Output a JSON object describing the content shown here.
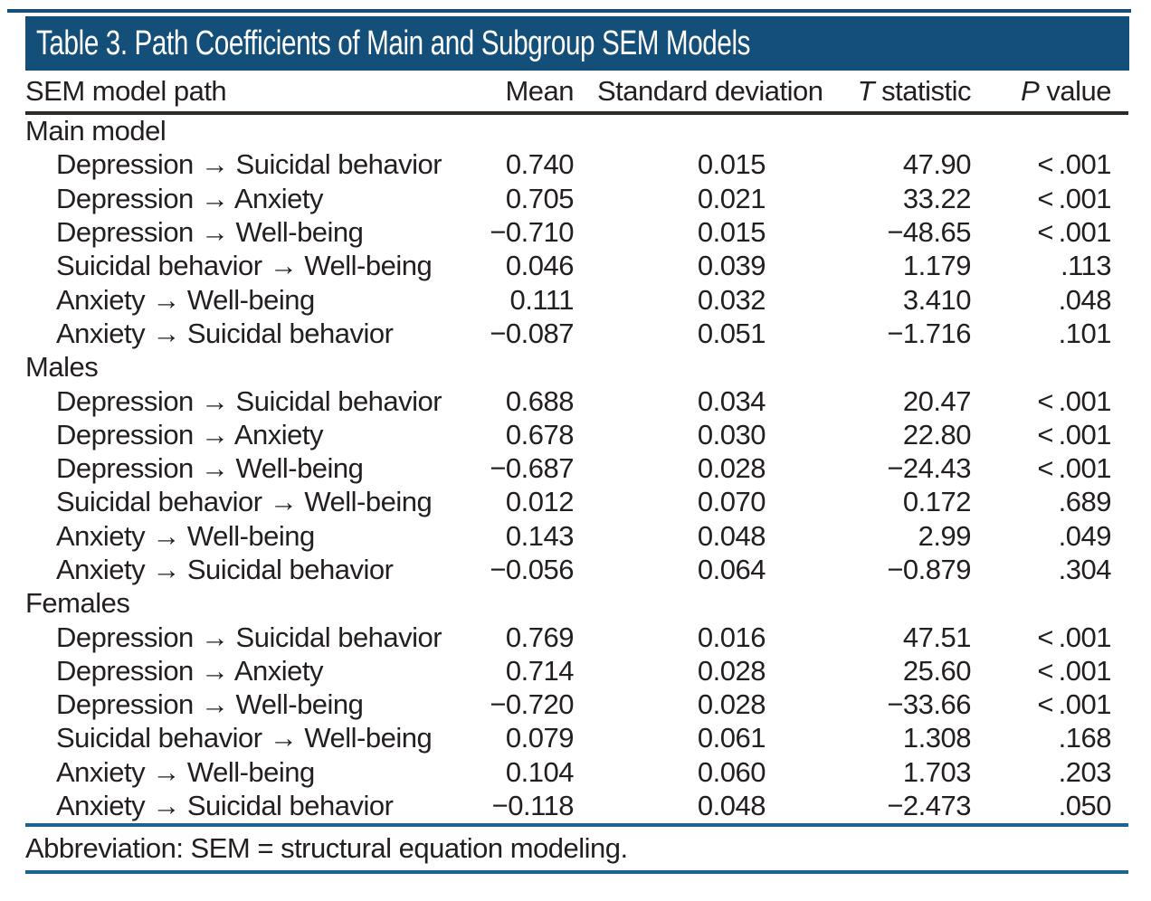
{
  "title": "Table 3. Path Coefficients of Main and Subgroup SEM Models",
  "columns": {
    "path": "SEM model path",
    "mean": "Mean",
    "sd": "Standard deviation",
    "t_italic": "T",
    "t_rest": " statistic",
    "p_italic": "P",
    "p_rest": " value"
  },
  "sections": [
    {
      "label": "Main model",
      "rows": [
        {
          "path": "Depression → Suicidal behavior",
          "mean": "0.740",
          "sd": "0.015",
          "t": "47.90",
          "p": "< .001"
        },
        {
          "path": "Depression → Anxiety",
          "mean": "0.705",
          "sd": "0.021",
          "t": "33.22",
          "p": "< .001"
        },
        {
          "path": "Depression → Well-being",
          "mean": "−0.710",
          "sd": "0.015",
          "t": "−48.65",
          "p": "< .001"
        },
        {
          "path": "Suicidal behavior → Well-being",
          "mean": "0.046",
          "sd": "0.039",
          "t": "1.179",
          "p": ".113"
        },
        {
          "path": "Anxiety → Well-being",
          "mean": "0.111",
          "sd": "0.032",
          "t": "3.410",
          "p": ".048"
        },
        {
          "path": "Anxiety → Suicidal behavior",
          "mean": "−0.087",
          "sd": "0.051",
          "t": "−1.716",
          "p": ".101"
        }
      ]
    },
    {
      "label": "Males",
      "rows": [
        {
          "path": "Depression → Suicidal behavior",
          "mean": "0.688",
          "sd": "0.034",
          "t": "20.47",
          "p": "< .001"
        },
        {
          "path": "Depression → Anxiety",
          "mean": "0.678",
          "sd": "0.030",
          "t": "22.80",
          "p": "< .001"
        },
        {
          "path": "Depression → Well-being",
          "mean": "−0.687",
          "sd": "0.028",
          "t": "−24.43",
          "p": "< .001"
        },
        {
          "path": "Suicidal behavior → Well-being",
          "mean": "0.012",
          "sd": "0.070",
          "t": "0.172",
          "p": ".689"
        },
        {
          "path": "Anxiety → Well-being",
          "mean": "0.143",
          "sd": "0.048",
          "t": "2.99",
          "p": ".049"
        },
        {
          "path": "Anxiety → Suicidal behavior",
          "mean": "−0.056",
          "sd": "0.064",
          "t": "−0.879",
          "p": ".304"
        }
      ]
    },
    {
      "label": "Females",
      "rows": [
        {
          "path": "Depression → Suicidal behavior",
          "mean": "0.769",
          "sd": "0.016",
          "t": "47.51",
          "p": "< .001"
        },
        {
          "path": "Depression → Anxiety",
          "mean": "0.714",
          "sd": "0.028",
          "t": "25.60",
          "p": "< .001"
        },
        {
          "path": "Depression → Well-being",
          "mean": "−0.720",
          "sd": "0.028",
          "t": "−33.66",
          "p": "< .001"
        },
        {
          "path": "Suicidal behavior → Well-being",
          "mean": "0.079",
          "sd": "0.061",
          "t": "1.308",
          "p": ".168"
        },
        {
          "path": "Anxiety → Well-being",
          "mean": "0.104",
          "sd": "0.060",
          "t": "1.703",
          "p": ".203"
        },
        {
          "path": "Anxiety → Suicidal behavior",
          "mean": "−0.118",
          "sd": "0.048",
          "t": "−2.473",
          "p": ".050"
        }
      ]
    }
  ],
  "footnote": "Abbreviation: SEM = structural equation modeling.",
  "colors": {
    "title_bar_bg": "#134f79",
    "title_text": "#ffffff",
    "top_rule": "#134f79",
    "header_rule": "#2d2a28",
    "footer_rule": "#1b6492",
    "body_text": "#231f20"
  }
}
